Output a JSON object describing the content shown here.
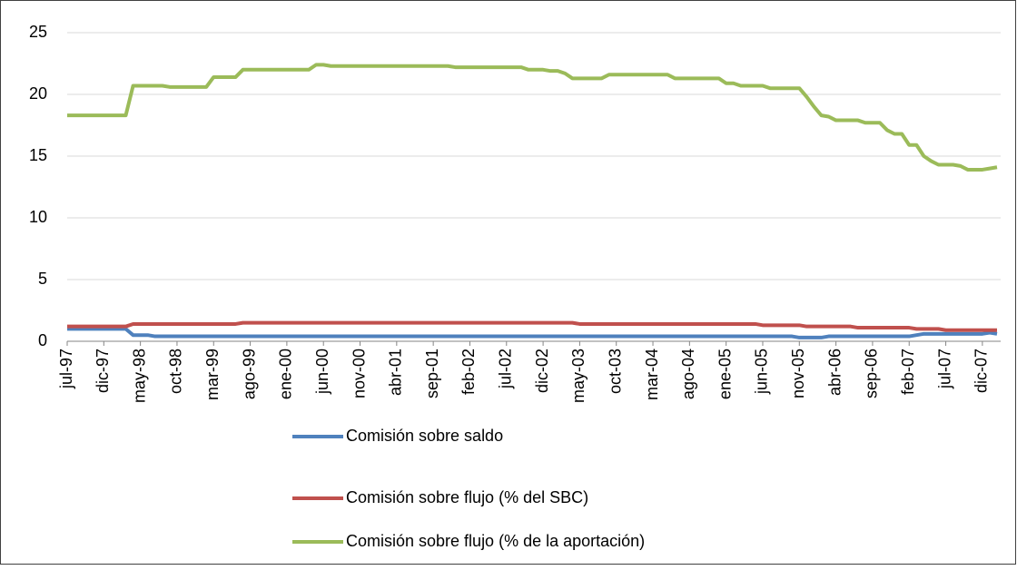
{
  "chart_data": {
    "type": "line",
    "categories": [
      "jul-97",
      null,
      null,
      null,
      null,
      "dic-97",
      null,
      null,
      null,
      null,
      "may-98",
      null,
      null,
      null,
      null,
      "oct-98",
      null,
      null,
      null,
      null,
      "mar-99",
      null,
      null,
      null,
      null,
      "ago-99",
      null,
      null,
      null,
      null,
      "ene-00",
      null,
      null,
      null,
      null,
      "jun-00",
      null,
      null,
      null,
      null,
      "nov-00",
      null,
      null,
      null,
      null,
      "abr-01",
      null,
      null,
      null,
      null,
      "sep-01",
      null,
      null,
      null,
      null,
      "feb-02",
      null,
      null,
      null,
      null,
      "jul-02",
      null,
      null,
      null,
      null,
      "dic-02",
      null,
      null,
      null,
      null,
      "may-03",
      null,
      null,
      null,
      null,
      "oct-03",
      null,
      null,
      null,
      null,
      "mar-04",
      null,
      null,
      null,
      null,
      "ago-04",
      null,
      null,
      null,
      null,
      "ene-05",
      null,
      null,
      null,
      null,
      "jun-05",
      null,
      null,
      null,
      null,
      "nov-05",
      null,
      null,
      null,
      null,
      "abr-06",
      null,
      null,
      null,
      null,
      "sep-06",
      null,
      null,
      null,
      null,
      "feb-07",
      null,
      null,
      null,
      null,
      "jul-07",
      null,
      null,
      null,
      null,
      "dic-07",
      null,
      null
    ],
    "series": [
      {
        "name": "Comisión sobre saldo",
        "color": "#4f81bd",
        "values": [
          1.0,
          1.0,
          1.0,
          1.0,
          1.0,
          1.0,
          1.0,
          1.0,
          1.0,
          0.5,
          0.5,
          0.5,
          0.4,
          0.4,
          0.4,
          0.4,
          0.4,
          0.4,
          0.4,
          0.4,
          0.4,
          0.4,
          0.4,
          0.4,
          0.4,
          0.4,
          0.4,
          0.4,
          0.4,
          0.4,
          0.4,
          0.4,
          0.4,
          0.4,
          0.4,
          0.4,
          0.4,
          0.4,
          0.4,
          0.4,
          0.4,
          0.4,
          0.4,
          0.4,
          0.4,
          0.4,
          0.4,
          0.4,
          0.4,
          0.4,
          0.4,
          0.4,
          0.4,
          0.4,
          0.4,
          0.4,
          0.4,
          0.4,
          0.4,
          0.4,
          0.4,
          0.4,
          0.4,
          0.4,
          0.4,
          0.4,
          0.4,
          0.4,
          0.4,
          0.4,
          0.4,
          0.4,
          0.4,
          0.4,
          0.4,
          0.4,
          0.4,
          0.4,
          0.4,
          0.4,
          0.4,
          0.4,
          0.4,
          0.4,
          0.4,
          0.4,
          0.4,
          0.4,
          0.4,
          0.4,
          0.4,
          0.4,
          0.4,
          0.4,
          0.4,
          0.4,
          0.4,
          0.4,
          0.4,
          0.4,
          0.3,
          0.3,
          0.3,
          0.3,
          0.4,
          0.4,
          0.4,
          0.4,
          0.4,
          0.4,
          0.4,
          0.4,
          0.4,
          0.4,
          0.4,
          0.4,
          0.5,
          0.6,
          0.6,
          0.6,
          0.6,
          0.6,
          0.6,
          0.6,
          0.6,
          0.6,
          0.7,
          0.6
        ]
      },
      {
        "name": "Comisión sobre flujo (% del SBC)",
        "color": "#c0504d",
        "values": [
          1.2,
          1.2,
          1.2,
          1.2,
          1.2,
          1.2,
          1.2,
          1.2,
          1.2,
          1.4,
          1.4,
          1.4,
          1.4,
          1.4,
          1.4,
          1.4,
          1.4,
          1.4,
          1.4,
          1.4,
          1.4,
          1.4,
          1.4,
          1.4,
          1.5,
          1.5,
          1.5,
          1.5,
          1.5,
          1.5,
          1.5,
          1.5,
          1.5,
          1.5,
          1.5,
          1.5,
          1.5,
          1.5,
          1.5,
          1.5,
          1.5,
          1.5,
          1.5,
          1.5,
          1.5,
          1.5,
          1.5,
          1.5,
          1.5,
          1.5,
          1.5,
          1.5,
          1.5,
          1.5,
          1.5,
          1.5,
          1.5,
          1.5,
          1.5,
          1.5,
          1.5,
          1.5,
          1.5,
          1.5,
          1.5,
          1.5,
          1.5,
          1.5,
          1.5,
          1.5,
          1.4,
          1.4,
          1.4,
          1.4,
          1.4,
          1.4,
          1.4,
          1.4,
          1.4,
          1.4,
          1.4,
          1.4,
          1.4,
          1.4,
          1.4,
          1.4,
          1.4,
          1.4,
          1.4,
          1.4,
          1.4,
          1.4,
          1.4,
          1.4,
          1.4,
          1.3,
          1.3,
          1.3,
          1.3,
          1.3,
          1.3,
          1.2,
          1.2,
          1.2,
          1.2,
          1.2,
          1.2,
          1.2,
          1.1,
          1.1,
          1.1,
          1.1,
          1.1,
          1.1,
          1.1,
          1.1,
          1.0,
          1.0,
          1.0,
          1.0,
          0.9,
          0.9,
          0.9,
          0.9,
          0.9,
          0.9,
          0.9,
          0.9
        ]
      },
      {
        "name": "Comisión sobre flujo (% de la aportación)",
        "color": "#9bbb59",
        "values": [
          18.3,
          18.3,
          18.3,
          18.3,
          18.3,
          18.3,
          18.3,
          18.3,
          18.3,
          20.7,
          20.7,
          20.7,
          20.7,
          20.7,
          20.6,
          20.6,
          20.6,
          20.6,
          20.6,
          20.6,
          21.4,
          21.4,
          21.4,
          21.4,
          22.0,
          22.0,
          22.0,
          22.0,
          22.0,
          22.0,
          22.0,
          22.0,
          22.0,
          22.0,
          22.4,
          22.4,
          22.3,
          22.3,
          22.3,
          22.3,
          22.3,
          22.3,
          22.3,
          22.3,
          22.3,
          22.3,
          22.3,
          22.3,
          22.3,
          22.3,
          22.3,
          22.3,
          22.3,
          22.2,
          22.2,
          22.2,
          22.2,
          22.2,
          22.2,
          22.2,
          22.2,
          22.2,
          22.2,
          22.0,
          22.0,
          22.0,
          21.9,
          21.9,
          21.7,
          21.3,
          21.3,
          21.3,
          21.3,
          21.3,
          21.6,
          21.6,
          21.6,
          21.6,
          21.6,
          21.6,
          21.6,
          21.6,
          21.6,
          21.3,
          21.3,
          21.3,
          21.3,
          21.3,
          21.3,
          21.3,
          20.9,
          20.9,
          20.7,
          20.7,
          20.7,
          20.7,
          20.5,
          20.5,
          20.5,
          20.5,
          20.5,
          19.8,
          19.0,
          18.3,
          18.2,
          17.9,
          17.9,
          17.9,
          17.9,
          17.7,
          17.7,
          17.7,
          17.1,
          16.8,
          16.8,
          15.9,
          15.9,
          15.0,
          14.6,
          14.3,
          14.3,
          14.3,
          14.2,
          13.9,
          13.9,
          13.9,
          14.0,
          14.1
        ]
      }
    ],
    "ylim": [
      0,
      25
    ],
    "yticks": [
      0,
      5,
      10,
      15,
      20,
      25
    ],
    "grid": true
  }
}
